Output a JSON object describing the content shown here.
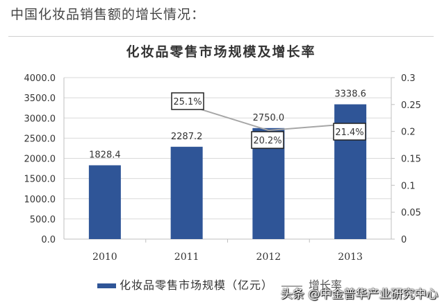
{
  "page": {
    "heading": "中国化妆品销售额的增长情况：",
    "watermark": "头条 @中金普华产业研究中心"
  },
  "legend": {
    "bar_label": "化妆品零售市场规模（亿元）",
    "line_label": "增长率"
  },
  "colors": {
    "bar": "#2f5597",
    "line": "#a6a6a6",
    "grid": "#d9d9d9"
  },
  "chart_data": {
    "type": "bar",
    "title": "化妆品零售市场规模及增长率",
    "categories": [
      "2010",
      "2011",
      "2012",
      "2013"
    ],
    "series": [
      {
        "name": "化妆品零售市场规模（亿元）",
        "type": "bar",
        "axis": "left",
        "values": [
          1828.4,
          2287.2,
          2750.0,
          3338.6
        ],
        "labels": [
          "1828.4",
          "2287.2",
          "2750.0",
          "3338.6"
        ]
      },
      {
        "name": "增长率",
        "type": "line",
        "axis": "right",
        "values": [
          null,
          0.251,
          0.202,
          0.214
        ],
        "labels": [
          "",
          "25.1%",
          "20.2%",
          "21.4%"
        ]
      }
    ],
    "xlabel": "",
    "ylabel": "",
    "y_left": {
      "ylim": [
        0,
        4000
      ],
      "ticks": [
        "0.0",
        "500.0",
        "1000.0",
        "1500.0",
        "2000.0",
        "2500.0",
        "3000.0",
        "3500.0",
        "4000.0"
      ]
    },
    "y_right": {
      "ylim": [
        0,
        0.3
      ],
      "ticks": [
        "0",
        "0.05",
        "0.1",
        "0.15",
        "0.2",
        "0.25",
        "0.3"
      ]
    },
    "grid": true,
    "legend_position": "bottom"
  }
}
